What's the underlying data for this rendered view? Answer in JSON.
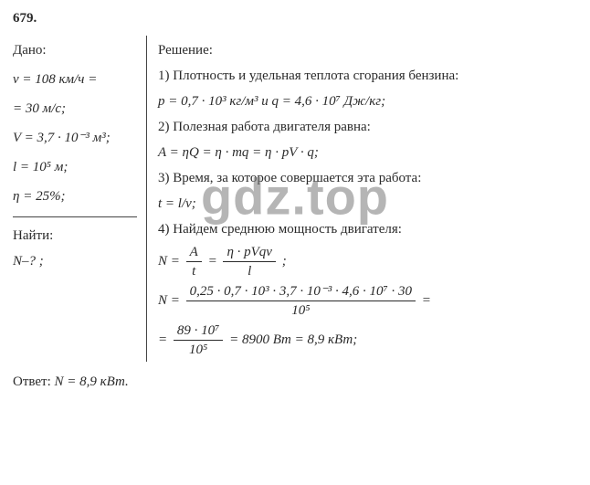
{
  "problem": {
    "number": "679."
  },
  "given": {
    "heading": "Дано:",
    "v1": "v = 108 км/ч =",
    "v2": "= 30 м/с;",
    "volume": "V = 3,7 · 10⁻³ м³;",
    "length": "l = 10⁵ м;",
    "eta": "η = 25%;"
  },
  "find": {
    "heading": "Найти:",
    "target": "N–? ;"
  },
  "solution": {
    "heading": "Решение:",
    "s1": "1) Плотность и удельная теплота сгорания бензина:",
    "s1b": "p = 0,7 · 10³ кг/м³  и  q = 4,6 · 10⁷ Дж/кг;",
    "s2": "2) Полезная работа двигателя равна:",
    "s2b": "A = ηQ = η · mq = η · pV · q;",
    "s3": "3) Время, за которое совершается эта работа:",
    "s3b": "t = l/v;",
    "s4": "4) Найдем среднюю мощность двигателя:",
    "eqN_lhs": "N = ",
    "frac1_num": "A",
    "frac1_den": "t",
    "eq_mid": " = ",
    "frac2_num": "η · pVqv",
    "frac2_den": "l",
    "semicolon": ";",
    "calc_num": "0,25 · 0,7 · 10³ · 3,7 · 10⁻³ · 4,6 · 10⁷ · 30",
    "calc_den": "10⁵",
    "eq_trail": " =",
    "res_num": "89 · 10⁷",
    "res_den": "10⁵",
    "res_tail": " = 8900 Вт = 8,9 кВт;",
    "eq_prefix": "= "
  },
  "answer": {
    "label": "Ответ: ",
    "value": "N = 8,9 кВт."
  },
  "watermark": "gdz.top"
}
